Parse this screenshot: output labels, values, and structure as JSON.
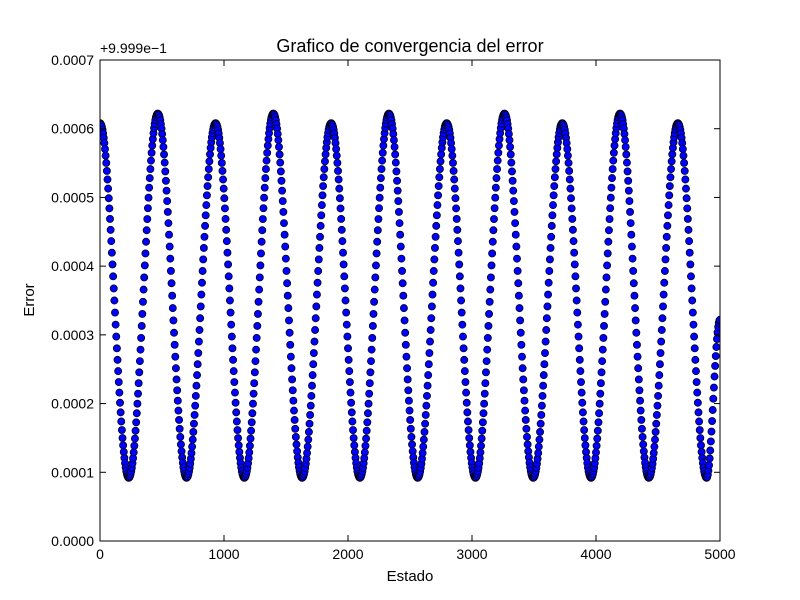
{
  "chart_data": {
    "type": "scatter",
    "title": "Grafico de convergencia del error",
    "xlabel": "Estado",
    "ylabel": "Error",
    "offset_label": "+9.999e−1",
    "xlim": [
      0,
      5000
    ],
    "ylim": [
      0,
      0.0007
    ],
    "x_ticks": [
      0,
      1000,
      2000,
      3000,
      4000,
      5000
    ],
    "x_tick_labels": [
      "0",
      "1000",
      "2000",
      "3000",
      "4000",
      "5000"
    ],
    "y_ticks": [
      0,
      0.0001,
      0.0002,
      0.0003,
      0.0004,
      0.0005,
      0.0006,
      0.0007
    ],
    "y_tick_labels": [
      "0.0000",
      "0.0001",
      "0.0002",
      "0.0003",
      "0.0004",
      "0.0005",
      "0.0006",
      "0.0007"
    ],
    "grid": false,
    "marker_color": "#0000ff",
    "marker_edge_color": "#000000",
    "series": [
      {
        "x": [
          0,
          232,
          466,
          698,
          932,
          1164,
          1398,
          1630,
          1864,
          2096,
          2330,
          2562,
          2796,
          3028,
          3262,
          3494,
          3728,
          3960,
          4194,
          4426,
          4660,
          4892,
          5000
        ],
        "values": [
          0.000608,
          9.2e-05,
          0.000622,
          9.2e-05,
          0.000608,
          9.2e-05,
          0.000622,
          9.2e-05,
          0.000608,
          9.2e-05,
          0.000622,
          9.2e-05,
          0.000608,
          9.2e-05,
          0.000622,
          9.2e-05,
          0.000608,
          9.2e-05,
          0.000622,
          9.2e-05,
          0.000608,
          9.2e-05,
          0.000322
        ]
      }
    ]
  }
}
